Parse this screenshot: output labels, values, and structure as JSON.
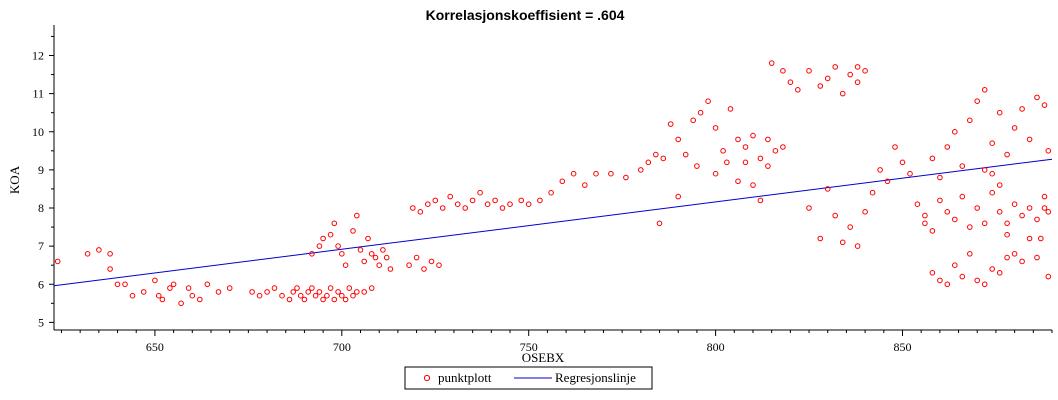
{
  "chart_data": {
    "type": "scatter",
    "title": "Korrelasjonskoeffisient =  .604",
    "xlabel": "OSEBX",
    "ylabel": "KOA",
    "xlim": [
      623,
      890
    ],
    "ylim": [
      4.8,
      12.8
    ],
    "x_ticks": [
      650,
      700,
      750,
      800,
      850
    ],
    "y_ticks": [
      5,
      6,
      7,
      8,
      9,
      10,
      11,
      12
    ],
    "grid": false,
    "legend_position": "bottom-center",
    "series": [
      {
        "name": "punktplott",
        "type": "scatter",
        "color": "#ff0000",
        "marker": "circle-open",
        "points": [
          [
            624,
            6.6
          ],
          [
            632,
            6.8
          ],
          [
            635,
            6.9
          ],
          [
            638,
            6.8
          ],
          [
            638,
            6.4
          ],
          [
            640,
            6.0
          ],
          [
            642,
            6.0
          ],
          [
            644,
            5.7
          ],
          [
            647,
            5.8
          ],
          [
            650,
            6.1
          ],
          [
            651,
            5.7
          ],
          [
            652,
            5.6
          ],
          [
            654,
            5.9
          ],
          [
            655,
            6.0
          ],
          [
            657,
            5.5
          ],
          [
            659,
            5.9
          ],
          [
            660,
            5.7
          ],
          [
            662,
            5.6
          ],
          [
            664,
            6.0
          ],
          [
            667,
            5.8
          ],
          [
            670,
            5.9
          ],
          [
            676,
            5.8
          ],
          [
            678,
            5.7
          ],
          [
            680,
            5.8
          ],
          [
            682,
            5.9
          ],
          [
            684,
            5.7
          ],
          [
            686,
            5.6
          ],
          [
            687,
            5.8
          ],
          [
            688,
            5.9
          ],
          [
            689,
            5.7
          ],
          [
            690,
            5.6
          ],
          [
            691,
            5.8
          ],
          [
            692,
            5.9
          ],
          [
            693,
            5.7
          ],
          [
            694,
            5.8
          ],
          [
            695,
            5.6
          ],
          [
            696,
            5.7
          ],
          [
            697,
            5.9
          ],
          [
            698,
            5.6
          ],
          [
            699,
            5.8
          ],
          [
            700,
            5.7
          ],
          [
            701,
            5.6
          ],
          [
            702,
            5.9
          ],
          [
            703,
            5.7
          ],
          [
            704,
            5.8
          ],
          [
            706,
            5.8
          ],
          [
            708,
            5.9
          ],
          [
            692,
            6.8
          ],
          [
            694,
            7.0
          ],
          [
            695,
            7.2
          ],
          [
            697,
            7.3
          ],
          [
            698,
            7.6
          ],
          [
            699,
            7.0
          ],
          [
            700,
            6.8
          ],
          [
            701,
            6.5
          ],
          [
            703,
            7.4
          ],
          [
            704,
            7.8
          ],
          [
            705,
            6.9
          ],
          [
            706,
            6.6
          ],
          [
            707,
            7.2
          ],
          [
            708,
            6.8
          ],
          [
            709,
            6.7
          ],
          [
            710,
            6.5
          ],
          [
            711,
            6.9
          ],
          [
            712,
            6.7
          ],
          [
            713,
            6.4
          ],
          [
            718,
            6.5
          ],
          [
            720,
            6.7
          ],
          [
            722,
            6.4
          ],
          [
            724,
            6.6
          ],
          [
            726,
            6.5
          ],
          [
            719,
            8.0
          ],
          [
            721,
            7.9
          ],
          [
            723,
            8.1
          ],
          [
            725,
            8.2
          ],
          [
            727,
            8.0
          ],
          [
            729,
            8.3
          ],
          [
            731,
            8.1
          ],
          [
            733,
            8.0
          ],
          [
            735,
            8.2
          ],
          [
            737,
            8.4
          ],
          [
            739,
            8.1
          ],
          [
            741,
            8.2
          ],
          [
            743,
            8.0
          ],
          [
            745,
            8.1
          ],
          [
            748,
            8.2
          ],
          [
            750,
            8.1
          ],
          [
            753,
            8.2
          ],
          [
            756,
            8.4
          ],
          [
            759,
            8.7
          ],
          [
            762,
            8.9
          ],
          [
            765,
            8.6
          ],
          [
            768,
            8.9
          ],
          [
            772,
            8.9
          ],
          [
            776,
            8.8
          ],
          [
            780,
            9.0
          ],
          [
            782,
            9.2
          ],
          [
            784,
            9.4
          ],
          [
            786,
            9.3
          ],
          [
            788,
            10.2
          ],
          [
            790,
            9.8
          ],
          [
            792,
            9.4
          ],
          [
            794,
            10.3
          ],
          [
            796,
            10.5
          ],
          [
            798,
            10.8
          ],
          [
            800,
            10.1
          ],
          [
            802,
            9.5
          ],
          [
            804,
            10.6
          ],
          [
            806,
            9.8
          ],
          [
            808,
            9.2
          ],
          [
            810,
            8.6
          ],
          [
            812,
            9.3
          ],
          [
            814,
            9.8
          ],
          [
            816,
            9.5
          ],
          [
            818,
            9.6
          ],
          [
            820,
            11.3
          ],
          [
            822,
            11.1
          ],
          [
            825,
            11.6
          ],
          [
            828,
            11.2
          ],
          [
            830,
            11.4
          ],
          [
            832,
            11.7
          ],
          [
            834,
            11.0
          ],
          [
            836,
            11.5
          ],
          [
            838,
            11.7
          ],
          [
            840,
            11.6
          ],
          [
            815,
            11.8
          ],
          [
            818,
            11.6
          ],
          [
            838,
            11.3
          ],
          [
            785,
            7.6
          ],
          [
            790,
            8.3
          ],
          [
            795,
            9.1
          ],
          [
            800,
            8.9
          ],
          [
            803,
            9.2
          ],
          [
            806,
            8.7
          ],
          [
            808,
            9.6
          ],
          [
            810,
            9.9
          ],
          [
            812,
            8.2
          ],
          [
            814,
            9.1
          ],
          [
            825,
            8.0
          ],
          [
            828,
            7.2
          ],
          [
            830,
            8.5
          ],
          [
            832,
            7.8
          ],
          [
            834,
            7.1
          ],
          [
            836,
            7.5
          ],
          [
            838,
            7.0
          ],
          [
            840,
            7.9
          ],
          [
            842,
            8.4
          ],
          [
            844,
            9.0
          ],
          [
            846,
            8.7
          ],
          [
            848,
            9.6
          ],
          [
            850,
            9.2
          ],
          [
            852,
            8.9
          ],
          [
            854,
            8.1
          ],
          [
            856,
            7.6
          ],
          [
            858,
            6.3
          ],
          [
            860,
            6.1
          ],
          [
            862,
            6.0
          ],
          [
            864,
            6.5
          ],
          [
            866,
            6.2
          ],
          [
            868,
            6.8
          ],
          [
            870,
            6.1
          ],
          [
            872,
            6.0
          ],
          [
            874,
            6.4
          ],
          [
            876,
            6.3
          ],
          [
            878,
            6.7
          ],
          [
            856,
            7.8
          ],
          [
            858,
            7.4
          ],
          [
            860,
            8.2
          ],
          [
            862,
            7.9
          ],
          [
            864,
            7.7
          ],
          [
            866,
            8.3
          ],
          [
            868,
            7.5
          ],
          [
            870,
            8.0
          ],
          [
            872,
            7.6
          ],
          [
            874,
            8.4
          ],
          [
            876,
            7.9
          ],
          [
            878,
            7.3
          ],
          [
            880,
            8.1
          ],
          [
            882,
            7.8
          ],
          [
            884,
            8.0
          ],
          [
            886,
            7.7
          ],
          [
            888,
            8.3
          ],
          [
            889,
            7.9
          ],
          [
            858,
            9.3
          ],
          [
            860,
            8.8
          ],
          [
            862,
            9.6
          ],
          [
            864,
            10.0
          ],
          [
            866,
            9.1
          ],
          [
            868,
            10.3
          ],
          [
            870,
            10.8
          ],
          [
            872,
            11.1
          ],
          [
            874,
            9.7
          ],
          [
            876,
            10.5
          ],
          [
            878,
            9.4
          ],
          [
            880,
            10.1
          ],
          [
            882,
            10.6
          ],
          [
            884,
            9.8
          ],
          [
            886,
            10.9
          ],
          [
            888,
            10.7
          ],
          [
            889,
            9.5
          ],
          [
            886,
            6.7
          ],
          [
            887,
            7.2
          ],
          [
            888,
            8.0
          ],
          [
            889,
            6.2
          ],
          [
            884,
            7.2
          ],
          [
            882,
            6.6
          ],
          [
            880,
            6.8
          ],
          [
            878,
            7.6
          ],
          [
            876,
            8.6
          ],
          [
            874,
            8.9
          ],
          [
            872,
            9.0
          ]
        ]
      },
      {
        "name": "Regresjonslinje",
        "type": "line",
        "color": "#0000cc",
        "points": [
          [
            623,
            5.96
          ],
          [
            890,
            9.28
          ]
        ]
      }
    ]
  }
}
